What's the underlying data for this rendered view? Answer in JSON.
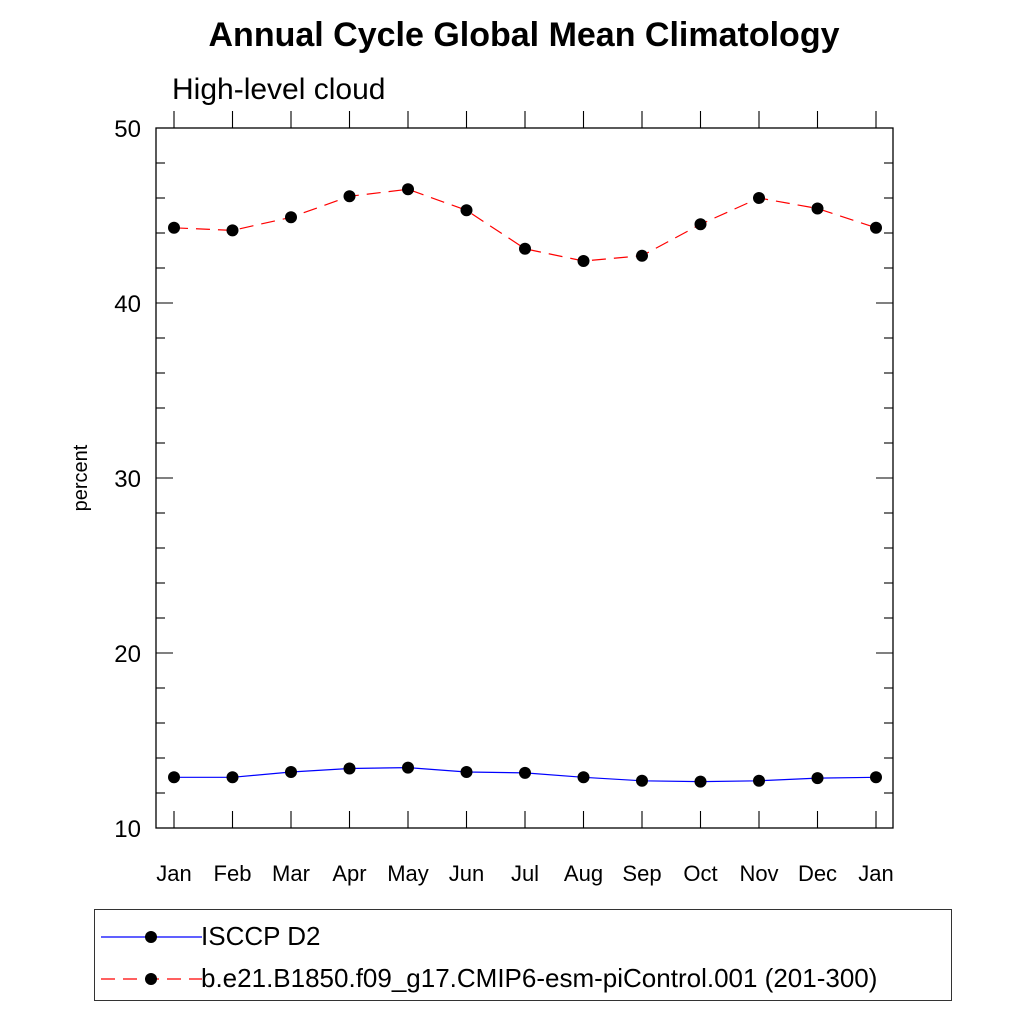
{
  "chart_data": {
    "type": "line",
    "title": "Annual Cycle Global Mean Climatology",
    "subtitle": "High-level cloud",
    "ylabel": "percent",
    "xlabel": "",
    "ylim": [
      10,
      50
    ],
    "yticks": [
      10,
      20,
      30,
      40,
      50
    ],
    "categories": [
      "Jan",
      "Feb",
      "Mar",
      "Apr",
      "May",
      "Jun",
      "Jul",
      "Aug",
      "Sep",
      "Oct",
      "Nov",
      "Dec",
      "Jan"
    ],
    "grid": false,
    "legend_position": "bottom",
    "series": [
      {
        "name": "ISCCP D2",
        "color": "#0000ff",
        "line_style": "solid",
        "marker": "filled-circle",
        "values": [
          12.9,
          12.9,
          13.2,
          13.4,
          13.45,
          13.2,
          13.15,
          12.9,
          12.7,
          12.65,
          12.7,
          12.85,
          12.9
        ]
      },
      {
        "name": "b.e21.B1850.f09_g17.CMIP6-esm-piControl.001 (201-300)",
        "color": "#ff0000",
        "line_style": "dashed",
        "marker": "filled-circle",
        "values": [
          44.3,
          44.15,
          44.9,
          46.1,
          46.5,
          45.3,
          43.1,
          42.4,
          42.7,
          44.5,
          46.0,
          45.4,
          44.3
        ]
      }
    ]
  }
}
